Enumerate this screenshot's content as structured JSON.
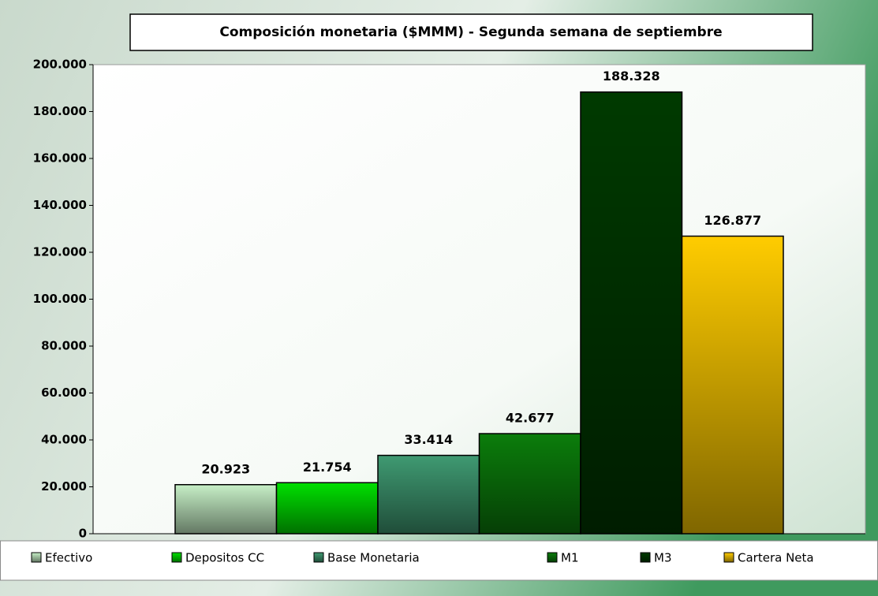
{
  "chart_data": {
    "type": "bar",
    "title": "Composición monetaria ($MMM)  - Segunda semana de septiembre",
    "series": [
      {
        "name": "Efectivo",
        "color": "#c6efc6",
        "values": [
          20923
        ],
        "value_labels": [
          "20.923"
        ]
      },
      {
        "name": "Depositos CC",
        "color": "#00e000",
        "values": [
          21754
        ],
        "value_labels": [
          "21.754"
        ]
      },
      {
        "name": "Base Monetaria",
        "color": "#3f9a72",
        "values": [
          33414
        ],
        "value_labels": [
          "33.414"
        ]
      },
      {
        "name": "M1",
        "color": "#0b7d0b",
        "values": [
          42677
        ],
        "value_labels": [
          "42.677"
        ]
      },
      {
        "name": "M3",
        "color": "#003a00",
        "values": [
          188328
        ],
        "value_labels": [
          "188.328"
        ]
      },
      {
        "name": "Cartera Neta",
        "color": "#ffcc00",
        "values": [
          126877
        ],
        "value_labels": [
          "126.877"
        ]
      }
    ],
    "ylim": [
      0,
      200000
    ],
    "yticks": [
      0,
      {
        "value": 20000,
        "label": "20.000"
      },
      {
        "value": 40000,
        "label": "40.000"
      },
      {
        "value": 60000,
        "label": "60.000"
      },
      {
        "value": 80000,
        "label": "80.000"
      },
      {
        "value": 100000,
        "label": "100.000"
      },
      {
        "value": 120000,
        "label": "120.000"
      },
      {
        "value": 140000,
        "label": "140.000"
      },
      {
        "value": 160000,
        "label": "160.000"
      },
      {
        "value": 180000,
        "label": "180.000"
      },
      {
        "value": 200000,
        "label": "200.000"
      }
    ],
    "grid": false,
    "legend": "bottom"
  }
}
